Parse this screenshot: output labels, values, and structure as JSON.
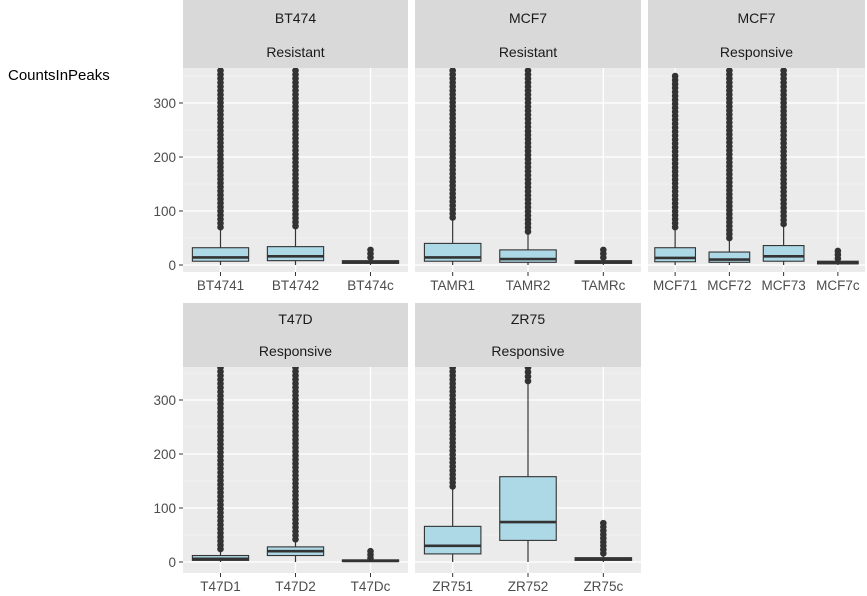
{
  "chart_data": {
    "type": "box",
    "ylabel": "CountsInPeaks",
    "xlabel": "",
    "ylim": [
      0,
      360
    ],
    "y_ticks": [
      0,
      100,
      200,
      300
    ],
    "grid": true,
    "colors": {
      "box_fill": "#add8e6",
      "panel_bg": "#ebebeb",
      "strip_bg": "#d9d9d9",
      "grid_major": "#ffffff",
      "outline": "#333333"
    },
    "panels": [
      {
        "strip": [
          "BT474",
          "Resistant"
        ],
        "categories": [
          "BT4741",
          "BT4742",
          "BT474c"
        ],
        "boxes": [
          {
            "q1": 7,
            "median": 14,
            "q3": 32,
            "whisker_low": 0,
            "whisker_high": 70,
            "outliers_from": 70,
            "outliers_to": 360
          },
          {
            "q1": 8,
            "median": 16,
            "q3": 34,
            "whisker_low": 0,
            "whisker_high": 72,
            "outliers_from": 72,
            "outliers_to": 360
          },
          {
            "q1": 3,
            "median": 5,
            "q3": 8,
            "whisker_low": 0,
            "whisker_high": 14,
            "outliers_from": 14,
            "outliers_to": 28
          }
        ]
      },
      {
        "strip": [
          "MCF7",
          "Resistant"
        ],
        "categories": [
          "TAMR1",
          "TAMR2",
          "TAMRc"
        ],
        "boxes": [
          {
            "q1": 7,
            "median": 14,
            "q3": 40,
            "whisker_low": 0,
            "whisker_high": 88,
            "outliers_from": 88,
            "outliers_to": 360
          },
          {
            "q1": 5,
            "median": 11,
            "q3": 28,
            "whisker_low": 0,
            "whisker_high": 62,
            "outliers_from": 62,
            "outliers_to": 360
          },
          {
            "q1": 3,
            "median": 5,
            "q3": 8,
            "whisker_low": 0,
            "whisker_high": 14,
            "outliers_from": 14,
            "outliers_to": 28
          }
        ]
      },
      {
        "strip": [
          "MCF7",
          "Responsive"
        ],
        "categories": [
          "MCF71",
          "MCF72",
          "MCF73",
          "MCF7c"
        ],
        "boxes": [
          {
            "q1": 6,
            "median": 13,
            "q3": 32,
            "whisker_low": 0,
            "whisker_high": 70,
            "outliers_from": 70,
            "outliers_to": 350
          },
          {
            "q1": 5,
            "median": 10,
            "q3": 24,
            "whisker_low": 0,
            "whisker_high": 50,
            "outliers_from": 50,
            "outliers_to": 360
          },
          {
            "q1": 7,
            "median": 16,
            "q3": 36,
            "whisker_low": 0,
            "whisker_high": 76,
            "outliers_from": 76,
            "outliers_to": 360
          },
          {
            "q1": 2,
            "median": 4,
            "q3": 7,
            "whisker_low": 0,
            "whisker_high": 12,
            "outliers_from": 12,
            "outliers_to": 26
          }
        ]
      },
      {
        "strip": [
          "T47D",
          "Responsive"
        ],
        "categories": [
          "T47D1",
          "T47D2",
          "T47Dc"
        ],
        "boxes": [
          {
            "q1": 3,
            "median": 6,
            "q3": 12,
            "whisker_low": 0,
            "whisker_high": 24,
            "outliers_from": 24,
            "outliers_to": 360
          },
          {
            "q1": 12,
            "median": 20,
            "q3": 28,
            "whisker_low": 0,
            "whisker_high": 42,
            "outliers_from": 42,
            "outliers_to": 360
          },
          {
            "q1": 1,
            "median": 2,
            "q3": 4,
            "whisker_low": 0,
            "whisker_high": 7,
            "outliers_from": 7,
            "outliers_to": 20
          }
        ]
      },
      {
        "strip": [
          "ZR75",
          "Responsive"
        ],
        "categories": [
          "ZR751",
          "ZR752",
          "ZR75c"
        ],
        "boxes": [
          {
            "q1": 15,
            "median": 30,
            "q3": 66,
            "whisker_low": 0,
            "whisker_high": 140,
            "outliers_from": 140,
            "outliers_to": 360
          },
          {
            "q1": 40,
            "median": 74,
            "q3": 158,
            "whisker_low": 0,
            "whisker_high": 335,
            "outliers_from": 335,
            "outliers_to": 360
          },
          {
            "q1": 3,
            "median": 5,
            "q3": 8,
            "whisker_low": 0,
            "whisker_high": 16,
            "outliers_from": 16,
            "outliers_to": 72
          }
        ]
      }
    ]
  }
}
